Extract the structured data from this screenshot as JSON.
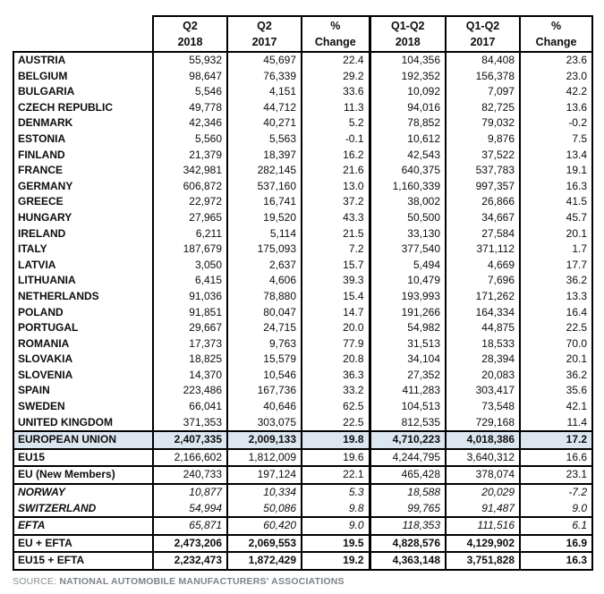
{
  "table": {
    "columns": [
      {
        "line1": "Q2",
        "line2": "2018"
      },
      {
        "line1": "Q2",
        "line2": "2017"
      },
      {
        "line1": "%",
        "line2": "Change"
      },
      {
        "line1": "Q1-Q2",
        "line2": "2018"
      },
      {
        "line1": "Q1-Q2",
        "line2": "2017"
      },
      {
        "line1": "%",
        "line2": "Change"
      }
    ],
    "rows": [
      {
        "label": "AUSTRIA",
        "style": "country first",
        "values": [
          "55,932",
          "45,697",
          "22.4",
          "104,356",
          "84,408",
          "23.6"
        ]
      },
      {
        "label": "BELGIUM",
        "style": "country",
        "values": [
          "98,647",
          "76,339",
          "29.2",
          "192,352",
          "156,378",
          "23.0"
        ]
      },
      {
        "label": "BULGARIA",
        "style": "country",
        "values": [
          "5,546",
          "4,151",
          "33.6",
          "10,092",
          "7,097",
          "42.2"
        ]
      },
      {
        "label": "CZECH REPUBLIC",
        "style": "country",
        "values": [
          "49,778",
          "44,712",
          "11.3",
          "94,016",
          "82,725",
          "13.6"
        ]
      },
      {
        "label": "DENMARK",
        "style": "country",
        "values": [
          "42,346",
          "40,271",
          "5.2",
          "78,852",
          "79,032",
          "-0.2"
        ]
      },
      {
        "label": "ESTONIA",
        "style": "country",
        "values": [
          "5,560",
          "5,563",
          "-0.1",
          "10,612",
          "9,876",
          "7.5"
        ]
      },
      {
        "label": "FINLAND",
        "style": "country",
        "values": [
          "21,379",
          "18,397",
          "16.2",
          "42,543",
          "37,522",
          "13.4"
        ]
      },
      {
        "label": "FRANCE",
        "style": "country",
        "values": [
          "342,981",
          "282,145",
          "21.6",
          "640,375",
          "537,783",
          "19.1"
        ]
      },
      {
        "label": "GERMANY",
        "style": "country",
        "values": [
          "606,872",
          "537,160",
          "13.0",
          "1,160,339",
          "997,357",
          "16.3"
        ]
      },
      {
        "label": "GREECE",
        "style": "country",
        "values": [
          "22,972",
          "16,741",
          "37.2",
          "38,002",
          "26,866",
          "41.5"
        ]
      },
      {
        "label": "HUNGARY",
        "style": "country",
        "values": [
          "27,965",
          "19,520",
          "43.3",
          "50,500",
          "34,667",
          "45.7"
        ]
      },
      {
        "label": "IRELAND",
        "style": "country",
        "values": [
          "6,211",
          "5,114",
          "21.5",
          "33,130",
          "27,584",
          "20.1"
        ]
      },
      {
        "label": "ITALY",
        "style": "country",
        "values": [
          "187,679",
          "175,093",
          "7.2",
          "377,540",
          "371,112",
          "1.7"
        ]
      },
      {
        "label": "LATVIA",
        "style": "country",
        "values": [
          "3,050",
          "2,637",
          "15.7",
          "5,494",
          "4,669",
          "17.7"
        ]
      },
      {
        "label": "LITHUANIA",
        "style": "country",
        "values": [
          "6,415",
          "4,606",
          "39.3",
          "10,479",
          "7,696",
          "36.2"
        ]
      },
      {
        "label": "NETHERLANDS",
        "style": "country",
        "values": [
          "91,036",
          "78,880",
          "15.4",
          "193,993",
          "171,262",
          "13.3"
        ]
      },
      {
        "label": "POLAND",
        "style": "country",
        "values": [
          "91,851",
          "80,047",
          "14.7",
          "191,266",
          "164,334",
          "16.4"
        ]
      },
      {
        "label": "PORTUGAL",
        "style": "country",
        "values": [
          "29,667",
          "24,715",
          "20.0",
          "54,982",
          "44,875",
          "22.5"
        ]
      },
      {
        "label": "ROMANIA",
        "style": "country",
        "values": [
          "17,373",
          "9,763",
          "77.9",
          "31,513",
          "18,533",
          "70.0"
        ]
      },
      {
        "label": "SLOVAKIA",
        "style": "country",
        "values": [
          "18,825",
          "15,579",
          "20.8",
          "34,104",
          "28,394",
          "20.1"
        ]
      },
      {
        "label": "SLOVENIA",
        "style": "country",
        "values": [
          "14,370",
          "10,546",
          "36.3",
          "27,352",
          "20,083",
          "36.2"
        ]
      },
      {
        "label": "SPAIN",
        "style": "country",
        "values": [
          "223,486",
          "167,736",
          "33.2",
          "411,283",
          "303,417",
          "35.6"
        ]
      },
      {
        "label": "SWEDEN",
        "style": "country",
        "values": [
          "66,041",
          "40,646",
          "62.5",
          "104,513",
          "73,548",
          "42.1"
        ]
      },
      {
        "label": "UNITED KINGDOM",
        "style": "country",
        "values": [
          "371,353",
          "303,075",
          "22.5",
          "812,535",
          "729,168",
          "11.4"
        ]
      },
      {
        "label": "EUROPEAN UNION",
        "style": "eu-total",
        "values": [
          "2,407,335",
          "2,009,133",
          "19.8",
          "4,710,223",
          "4,018,386",
          "17.2"
        ]
      },
      {
        "label": "EU15",
        "style": "eu15",
        "values": [
          "2,166,602",
          "1,812,009",
          "19.6",
          "4,244,795",
          "3,640,312",
          "16.6"
        ]
      },
      {
        "label": "EU (New Members)",
        "style": "eu-new",
        "values": [
          "240,733",
          "197,124",
          "22.1",
          "465,428",
          "378,074",
          "23.1"
        ]
      },
      {
        "label": "NORWAY",
        "style": "norway",
        "values": [
          "10,877",
          "10,334",
          "5.3",
          "18,588",
          "20,029",
          "-7.2"
        ]
      },
      {
        "label": "SWITZERLAND",
        "style": "switzerland",
        "values": [
          "54,994",
          "50,086",
          "9.8",
          "99,765",
          "91,487",
          "9.0"
        ]
      },
      {
        "label": "EFTA",
        "style": "efta-total",
        "values": [
          "65,871",
          "60,420",
          "9.0",
          "118,353",
          "111,516",
          "6.1"
        ]
      },
      {
        "label": "EU + EFTA",
        "style": "eu-efta",
        "values": [
          "2,473,206",
          "2,069,553",
          "19.5",
          "4,828,576",
          "4,129,902",
          "16.9"
        ]
      },
      {
        "label": "EU15 + EFTA",
        "style": "eu15-efta",
        "values": [
          "2,232,473",
          "1,872,429",
          "19.2",
          "4,363,148",
          "3,751,828",
          "16.3"
        ]
      }
    ]
  },
  "source": {
    "prefix": "SOURCE:",
    "text": "NATIONAL AUTOMOBILE MANUFACTURERS' ASSOCIATIONS"
  },
  "colors": {
    "highlight_row": "#dce6f1",
    "border": "#000000",
    "source_text": "#8a8f94"
  }
}
